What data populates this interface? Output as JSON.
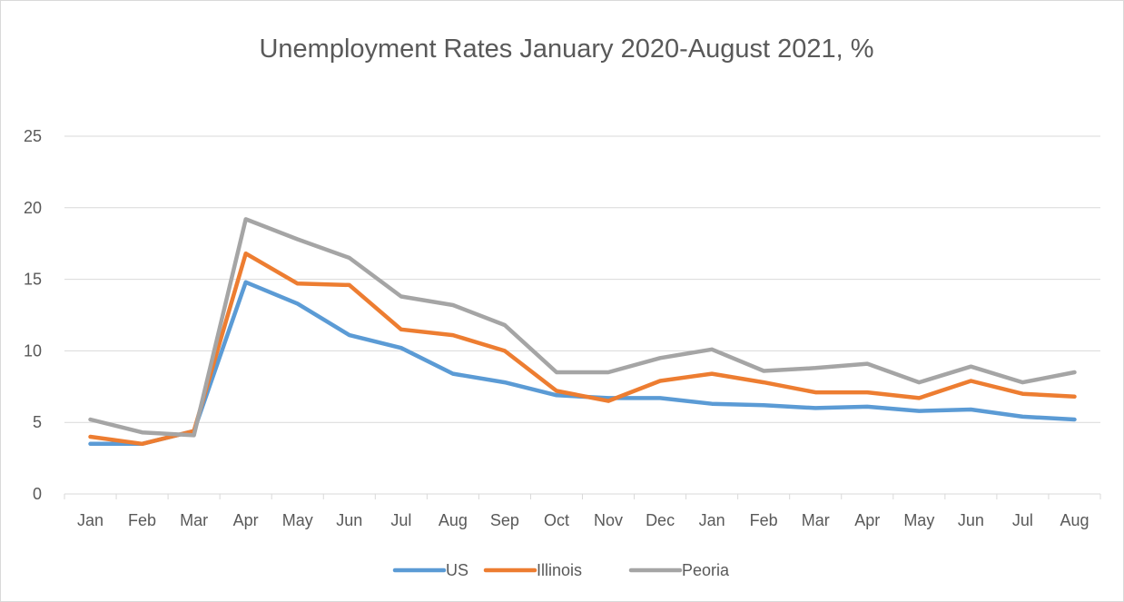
{
  "chart_data": {
    "type": "line",
    "title": "Unemployment Rates January 2020-August 2021, %",
    "categories": [
      "Jan",
      "Feb",
      "Mar",
      "Apr",
      "May",
      "Jun",
      "Jul",
      "Aug",
      "Sep",
      "Oct",
      "Nov",
      "Dec",
      "Jan",
      "Feb",
      "Mar",
      "Apr",
      "May",
      "Jun",
      "Jul",
      "Aug"
    ],
    "ylim": [
      0,
      25
    ],
    "yticks": [
      0,
      5,
      10,
      15,
      20,
      25
    ],
    "grid": true,
    "legend_position": "bottom",
    "series": [
      {
        "name": "US",
        "color": "#5b9bd5",
        "values": [
          3.5,
          3.5,
          4.4,
          14.8,
          13.3,
          11.1,
          10.2,
          8.4,
          7.8,
          6.9,
          6.7,
          6.7,
          6.3,
          6.2,
          6.0,
          6.1,
          5.8,
          5.9,
          5.4,
          5.2
        ]
      },
      {
        "name": "Illinois",
        "color": "#ed7d31",
        "values": [
          4.0,
          3.5,
          4.4,
          16.8,
          14.7,
          14.6,
          11.5,
          11.1,
          10.0,
          7.2,
          6.5,
          7.9,
          8.4,
          7.8,
          7.1,
          7.1,
          6.7,
          7.9,
          7.0,
          6.8
        ]
      },
      {
        "name": "Peoria",
        "color": "#a5a5a5",
        "values": [
          5.2,
          4.3,
          4.1,
          19.2,
          17.8,
          16.5,
          13.8,
          13.2,
          11.8,
          8.5,
          8.5,
          9.5,
          10.1,
          8.6,
          8.8,
          9.1,
          7.8,
          8.9,
          7.8,
          8.5
        ]
      }
    ]
  }
}
